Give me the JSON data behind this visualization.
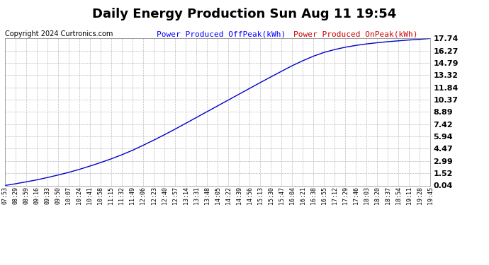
{
  "title": "Daily Energy Production Sun Aug 11 19:54",
  "copyright": "Copyright 2024 Curtronics.com",
  "legend_offpeak": "Power Produced OffPeak(kWh)",
  "legend_onpeak": "Power Produced OnPeak(kWh)",
  "legend_offpeak_color": "#0000ff",
  "legend_onpeak_color": "#cc0000",
  "line_color": "#0000cc",
  "background_color": "#ffffff",
  "grid_color": "#bbbbbb",
  "yticks": [
    0.04,
    1.52,
    2.99,
    4.47,
    5.94,
    7.42,
    8.89,
    10.37,
    11.84,
    13.32,
    14.79,
    16.27,
    17.74
  ],
  "ymin": 0.04,
  "ymax": 17.74,
  "xtick_labels": [
    "07:53",
    "08:29",
    "08:59",
    "09:16",
    "09:33",
    "09:50",
    "10:07",
    "10:24",
    "10:41",
    "10:58",
    "11:15",
    "11:32",
    "11:49",
    "12:06",
    "12:23",
    "12:40",
    "12:57",
    "13:14",
    "13:31",
    "13:48",
    "14:05",
    "14:22",
    "14:39",
    "14:56",
    "15:13",
    "15:30",
    "15:47",
    "16:04",
    "16:21",
    "16:38",
    "16:55",
    "17:12",
    "17:29",
    "17:46",
    "18:03",
    "18:20",
    "18:37",
    "18:54",
    "19:11",
    "19:28",
    "19:45"
  ],
  "curve_x_idx": [
    0,
    1,
    2,
    3,
    4,
    5,
    6,
    7,
    8,
    9,
    10,
    11,
    12,
    13,
    14,
    15,
    16,
    17,
    18,
    19,
    20,
    21,
    22,
    23,
    24,
    25,
    26,
    27,
    28,
    29,
    30,
    31,
    32,
    33,
    34,
    35,
    36,
    37,
    38,
    39,
    40
  ],
  "curve_y_vals": [
    0.04,
    0.25,
    0.48,
    0.72,
    1.0,
    1.3,
    1.62,
    1.98,
    2.38,
    2.8,
    3.25,
    3.74,
    4.28,
    4.88,
    5.5,
    6.15,
    6.82,
    7.52,
    8.22,
    8.92,
    9.62,
    10.32,
    11.02,
    11.72,
    12.42,
    13.1,
    13.78,
    14.45,
    15.05,
    15.6,
    16.05,
    16.4,
    16.68,
    16.9,
    17.08,
    17.22,
    17.35,
    17.45,
    17.55,
    17.63,
    17.74
  ],
  "title_fontsize": 13,
  "copyright_fontsize": 7,
  "legend_fontsize": 8,
  "ytick_fontsize": 8,
  "xtick_fontsize": 6
}
